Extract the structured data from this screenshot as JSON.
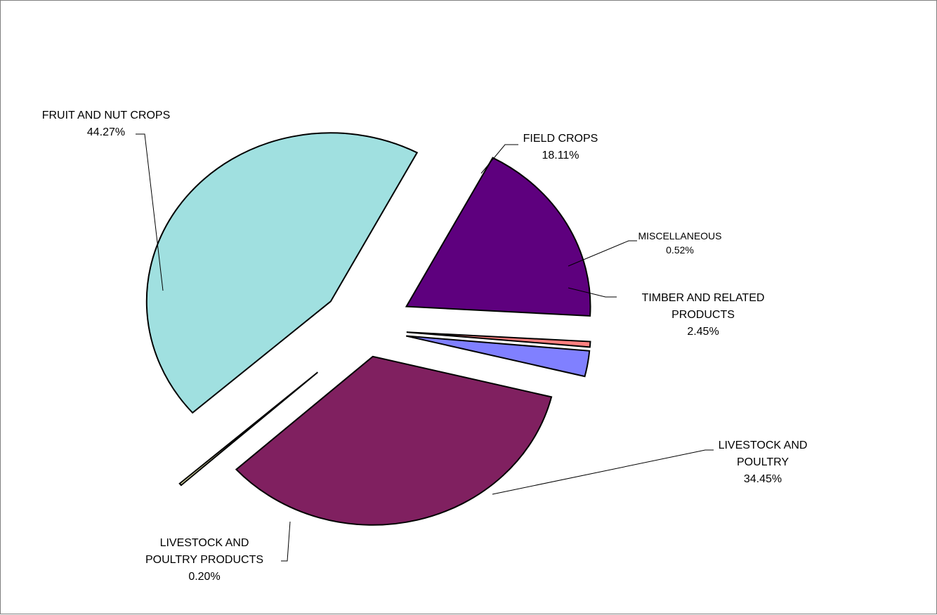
{
  "chart_data": {
    "type": "pie",
    "exploded": true,
    "slices": [
      {
        "label_lines": [
          "FIELD CROPS"
        ],
        "value": 18.11,
        "pct_label": "18.11%",
        "color": "#5e007e"
      },
      {
        "label_lines": [
          "MISCELLANEOUS"
        ],
        "value": 0.52,
        "pct_label": "0.52%",
        "color": "#ff8080"
      },
      {
        "label_lines": [
          "TIMBER AND RELATED",
          "PRODUCTS"
        ],
        "value": 2.45,
        "pct_label": "2.45%",
        "color": "#8080ff"
      },
      {
        "label_lines": [
          "LIVESTOCK AND",
          "POULTRY"
        ],
        "value": 34.45,
        "pct_label": "34.45%",
        "color": "#802060"
      },
      {
        "label_lines": [
          "LIVESTOCK AND",
          "POULTRY PRODUCTS"
        ],
        "value": 0.2,
        "pct_label": "0.20%",
        "color": "#ffffc0"
      },
      {
        "label_lines": [
          "FRUIT AND NUT CROPS"
        ],
        "value": 44.27,
        "pct_label": "44.27%",
        "color": "#a0e0e0"
      }
    ]
  }
}
